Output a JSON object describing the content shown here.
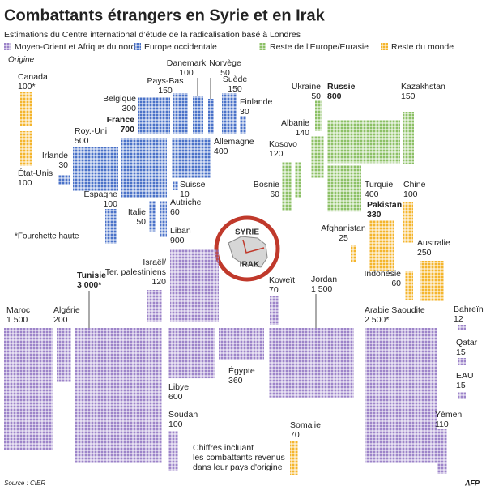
{
  "chart_data": {
    "type": "waffle",
    "title": "Combattants étrangers en Syrie et en Irak",
    "subtitle": "Estimations du Centre international d’étude de la radicalisation basé à Londres",
    "caption": "Origine",
    "note": "*Fourchette haute",
    "footnote": [
      "Chiffres incluant",
      "les combattants revenus",
      "dans leur pays d'origine"
    ],
    "map_labels": [
      "SYRIE",
      "IRAK"
    ],
    "source": "Source : CIER",
    "credit": "AFP",
    "series": [
      {
        "name": "Moyen-Orient et Afrique du nord",
        "color": "#9d84c9",
        "categories": [
          "Maroc",
          "Algérie",
          "Tunisie",
          [
            "Israël/",
            "Ter. palestiniens"
          ],
          "Liban",
          "Libye",
          "Égypte",
          "Koweït",
          "Jordan",
          "Arabie Saoudite",
          "Bahreïn",
          "Qatar",
          "EAU",
          "Yémen",
          "Soudan"
        ],
        "values": [
          1500,
          200,
          3000,
          120,
          900,
          600,
          360,
          70,
          1500,
          2500,
          12,
          15,
          15,
          110,
          100
        ],
        "value_labels": [
          "1 500",
          "200",
          "3 000*",
          "120",
          "900",
          "600",
          "360",
          "70",
          "1 500",
          "2 500*",
          "12",
          "15",
          "15",
          "110",
          "100"
        ]
      },
      {
        "name": "Europe occidentale",
        "color": "#4a72c8",
        "categories": [
          "Belgique",
          "Pays-Bas",
          "Danemark",
          "Norvège",
          "Suède",
          "Finlande",
          "France",
          "Allemagne",
          "Roy.-Uni",
          "Irlande",
          "Espagne",
          "Suisse",
          "Autriche",
          "Italie"
        ],
        "values": [
          300,
          150,
          100,
          50,
          150,
          30,
          700,
          400,
          500,
          30,
          100,
          10,
          60,
          50
        ],
        "value_labels": [
          "300",
          "150",
          "100",
          "50",
          "150",
          "30",
          "700",
          "400",
          "500",
          "30",
          "100",
          "10",
          "60",
          "50"
        ]
      },
      {
        "name": "Reste de l’Europe/Eurasie",
        "color": "#8cc066",
        "categories": [
          "Ukraine",
          "Russie",
          "Kazakhstan",
          "Albanie",
          "Kosovo",
          "Bosnie",
          "Turquie"
        ],
        "values": [
          50,
          800,
          150,
          140,
          120,
          60,
          400
        ],
        "value_labels": [
          "50",
          "800",
          "150",
          "140",
          "120",
          "60",
          "400"
        ]
      },
      {
        "name": "Reste du monde",
        "color": "#f4b52c",
        "categories": [
          "Canada",
          "État-Unis",
          "Chine",
          "Pakistan",
          "Afghanistan",
          "Australie",
          "Indonésie",
          "Somalie"
        ],
        "values": [
          100,
          100,
          100,
          330,
          25,
          250,
          60,
          70
        ],
        "value_labels": [
          "100*",
          "100",
          "100",
          "330",
          "25",
          "250",
          "60",
          "70"
        ]
      }
    ]
  }
}
